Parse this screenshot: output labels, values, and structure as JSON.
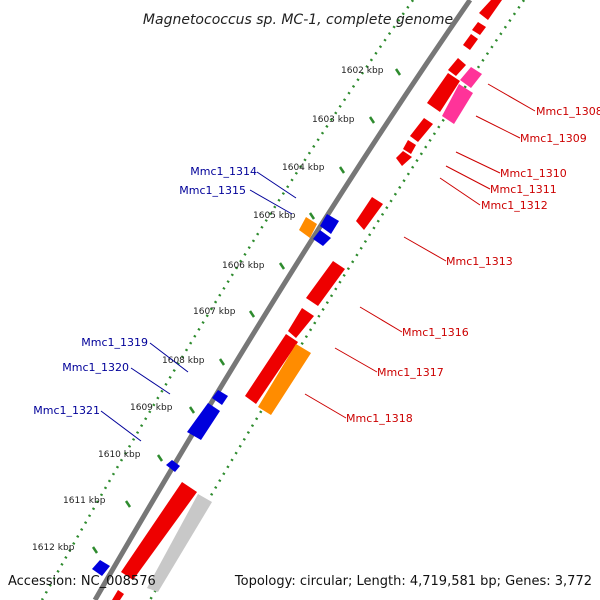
{
  "title": "Magnetococcus sp. MC-1, complete genome",
  "accession": "Accession: NC_008576",
  "summary": "Topology: circular; Length: 4,719,581 bp; Genes: 3,772",
  "colors": {
    "backbone": "#777777",
    "ticks": "#2e8b2e",
    "forward_gene": "#ee0000",
    "reverse_gene": "#0000dd",
    "orange_gene": "#ff8c00",
    "pink_gene": "#ff3399",
    "gray_gene": "#c8c8c8",
    "right_label": "#cc0000",
    "left_label": "#000099"
  },
  "kbp_labels": [
    "1602 kbp",
    "1603 kbp",
    "1604 kbp",
    "1605 kbp",
    "1606 kbp",
    "1607 kbp",
    "1608 kbp",
    "1609 kbp",
    "1610 kbp",
    "1611 kbp",
    "1612 kbp"
  ],
  "right_genes": [
    "Mmc1_1308",
    "Mmc1_1309",
    "Mmc1_1310",
    "Mmc1_1311",
    "Mmc1_1312",
    "Mmc1_1313",
    "Mmc1_1316",
    "Mmc1_1317",
    "Mmc1_1318"
  ],
  "left_genes": [
    "Mmc1_1314",
    "Mmc1_1315",
    "Mmc1_1319",
    "Mmc1_1320",
    "Mmc1_1321"
  ]
}
